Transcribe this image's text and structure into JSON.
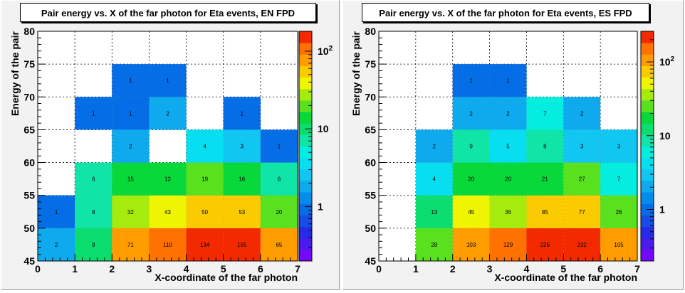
{
  "chart_data": [
    {
      "type": "heatmap",
      "title": "Pair energy vs. X of the far photon for Eta events, EN FPD",
      "xlabel": "X-coordinate of the far photon",
      "ylabel": "Energy of the pair",
      "xlim": [
        0,
        7
      ],
      "ylim": [
        45,
        80
      ],
      "x_ticks": [
        "0",
        "1",
        "2",
        "3",
        "4",
        "5",
        "6",
        "7"
      ],
      "y_ticks": [
        "45",
        "50",
        "55",
        "60",
        "65",
        "70",
        "75",
        "80"
      ],
      "color_scale": "log",
      "colorbar_ticks": [
        "1",
        "10",
        "10^2"
      ],
      "colorbar_range": [
        0.2,
        180
      ],
      "cells": [
        {
          "x": [
            0,
            1
          ],
          "y": [
            45,
            50
          ],
          "value": 2
        },
        {
          "x": [
            1,
            2
          ],
          "y": [
            45,
            50
          ],
          "value": 9
        },
        {
          "x": [
            2,
            3
          ],
          "y": [
            45,
            50
          ],
          "value": 71
        },
        {
          "x": [
            3,
            4
          ],
          "y": [
            45,
            50
          ],
          "value": 110
        },
        {
          "x": [
            4,
            5
          ],
          "y": [
            45,
            50
          ],
          "value": 134
        },
        {
          "x": [
            5,
            6
          ],
          "y": [
            45,
            50
          ],
          "value": 155
        },
        {
          "x": [
            6,
            7
          ],
          "y": [
            45,
            50
          ],
          "value": 65
        },
        {
          "x": [
            0,
            1
          ],
          "y": [
            50,
            55
          ],
          "value": 1
        },
        {
          "x": [
            1,
            2
          ],
          "y": [
            50,
            55
          ],
          "value": 8
        },
        {
          "x": [
            2,
            3
          ],
          "y": [
            50,
            55
          ],
          "value": 32
        },
        {
          "x": [
            3,
            4
          ],
          "y": [
            50,
            55
          ],
          "value": 43
        },
        {
          "x": [
            4,
            5
          ],
          "y": [
            50,
            55
          ],
          "value": 50
        },
        {
          "x": [
            5,
            6
          ],
          "y": [
            50,
            55
          ],
          "value": 53
        },
        {
          "x": [
            6,
            7
          ],
          "y": [
            50,
            55
          ],
          "value": 20
        },
        {
          "x": [
            1,
            2
          ],
          "y": [
            55,
            60
          ],
          "value": 6
        },
        {
          "x": [
            2,
            3
          ],
          "y": [
            55,
            60
          ],
          "value": 15
        },
        {
          "x": [
            3,
            4
          ],
          "y": [
            55,
            60
          ],
          "value": 12
        },
        {
          "x": [
            4,
            5
          ],
          "y": [
            55,
            60
          ],
          "value": 19
        },
        {
          "x": [
            5,
            6
          ],
          "y": [
            55,
            60
          ],
          "value": 16
        },
        {
          "x": [
            6,
            7
          ],
          "y": [
            55,
            60
          ],
          "value": 6
        },
        {
          "x": [
            2,
            3
          ],
          "y": [
            60,
            65
          ],
          "value": 2
        },
        {
          "x": [
            4,
            5
          ],
          "y": [
            60,
            65
          ],
          "value": 4
        },
        {
          "x": [
            5,
            6
          ],
          "y": [
            60,
            65
          ],
          "value": 3
        },
        {
          "x": [
            6,
            7
          ],
          "y": [
            60,
            65
          ],
          "value": 1
        },
        {
          "x": [
            1,
            2
          ],
          "y": [
            65,
            70
          ],
          "value": 1
        },
        {
          "x": [
            2,
            3
          ],
          "y": [
            65,
            70
          ],
          "value": 1
        },
        {
          "x": [
            3,
            4
          ],
          "y": [
            65,
            70
          ],
          "value": 2
        },
        {
          "x": [
            5,
            6
          ],
          "y": [
            65,
            70
          ],
          "value": 1
        },
        {
          "x": [
            2,
            3
          ],
          "y": [
            70,
            75
          ],
          "value": 1
        },
        {
          "x": [
            3,
            4
          ],
          "y": [
            70,
            75
          ],
          "value": 1
        }
      ]
    },
    {
      "type": "heatmap",
      "title": "Pair energy vs. X of the far photon for Eta events, ES FPD",
      "xlabel": "X-coordinate of the far photon",
      "ylabel": "Energy of the pair",
      "xlim": [
        0,
        7
      ],
      "ylim": [
        45,
        80
      ],
      "x_ticks": [
        "0",
        "1",
        "2",
        "3",
        "4",
        "5",
        "6",
        "7"
      ],
      "y_ticks": [
        "45",
        "50",
        "55",
        "60",
        "65",
        "70",
        "75",
        "80"
      ],
      "color_scale": "log",
      "colorbar_ticks": [
        "1",
        "10",
        "10^2"
      ],
      "colorbar_range": [
        0.2,
        260
      ],
      "cells": [
        {
          "x": [
            1,
            2
          ],
          "y": [
            45,
            50
          ],
          "value": 28
        },
        {
          "x": [
            2,
            3
          ],
          "y": [
            45,
            50
          ],
          "value": 103
        },
        {
          "x": [
            3,
            4
          ],
          "y": [
            45,
            50
          ],
          "value": 129
        },
        {
          "x": [
            4,
            5
          ],
          "y": [
            45,
            50
          ],
          "value": 226
        },
        {
          "x": [
            5,
            6
          ],
          "y": [
            45,
            50
          ],
          "value": 232
        },
        {
          "x": [
            6,
            7
          ],
          "y": [
            45,
            50
          ],
          "value": 105
        },
        {
          "x": [
            1,
            2
          ],
          "y": [
            50,
            55
          ],
          "value": 13
        },
        {
          "x": [
            2,
            3
          ],
          "y": [
            50,
            55
          ],
          "value": 45
        },
        {
          "x": [
            3,
            4
          ],
          "y": [
            50,
            55
          ],
          "value": 36
        },
        {
          "x": [
            4,
            5
          ],
          "y": [
            50,
            55
          ],
          "value": 85
        },
        {
          "x": [
            5,
            6
          ],
          "y": [
            50,
            55
          ],
          "value": 77
        },
        {
          "x": [
            6,
            7
          ],
          "y": [
            50,
            55
          ],
          "value": 26
        },
        {
          "x": [
            1,
            2
          ],
          "y": [
            55,
            60
          ],
          "value": 4
        },
        {
          "x": [
            2,
            3
          ],
          "y": [
            55,
            60
          ],
          "value": 20
        },
        {
          "x": [
            3,
            4
          ],
          "y": [
            55,
            60
          ],
          "value": 20
        },
        {
          "x": [
            4,
            5
          ],
          "y": [
            55,
            60
          ],
          "value": 21
        },
        {
          "x": [
            5,
            6
          ],
          "y": [
            55,
            60
          ],
          "value": 27
        },
        {
          "x": [
            6,
            7
          ],
          "y": [
            55,
            60
          ],
          "value": 7
        },
        {
          "x": [
            1,
            2
          ],
          "y": [
            60,
            65
          ],
          "value": 2
        },
        {
          "x": [
            2,
            3
          ],
          "y": [
            60,
            65
          ],
          "value": 9
        },
        {
          "x": [
            3,
            4
          ],
          "y": [
            60,
            65
          ],
          "value": 5
        },
        {
          "x": [
            4,
            5
          ],
          "y": [
            60,
            65
          ],
          "value": 8
        },
        {
          "x": [
            5,
            6
          ],
          "y": [
            60,
            65
          ],
          "value": 3
        },
        {
          "x": [
            6,
            7
          ],
          "y": [
            60,
            65
          ],
          "value": 3
        },
        {
          "x": [
            2,
            3
          ],
          "y": [
            65,
            70
          ],
          "value": 2
        },
        {
          "x": [
            3,
            4
          ],
          "y": [
            65,
            70
          ],
          "value": 2
        },
        {
          "x": [
            4,
            5
          ],
          "y": [
            65,
            70
          ],
          "value": 7
        },
        {
          "x": [
            5,
            6
          ],
          "y": [
            65,
            70
          ],
          "value": 2
        },
        {
          "x": [
            2,
            3
          ],
          "y": [
            70,
            75
          ],
          "value": 1
        },
        {
          "x": [
            3,
            4
          ],
          "y": [
            70,
            75
          ],
          "value": 1
        }
      ]
    }
  ]
}
